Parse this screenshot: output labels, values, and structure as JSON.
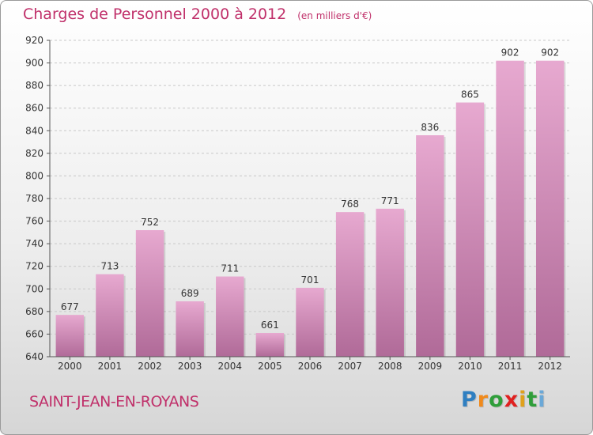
{
  "title": "Charges de Personnel 2000 à 2012",
  "subtitle": "(en milliers d'€)",
  "commune": "SAINT-JEAN-EN-ROYANS",
  "logo": {
    "letters": [
      "P",
      "r",
      "o",
      "x",
      "i",
      "t",
      "i"
    ],
    "colors": [
      "#2f7fc1",
      "#f08a1c",
      "#2f9e3a",
      "#e0201f",
      "#e0a11b",
      "#2f9e3a",
      "#6aa8d8"
    ]
  },
  "colors": {
    "title": "#c0306a",
    "bar_top": "#e7a9d0",
    "bar_bottom": "#b06a98"
  },
  "chart_data": {
    "type": "bar",
    "categories": [
      "2000",
      "2001",
      "2002",
      "2003",
      "2004",
      "2005",
      "2006",
      "2007",
      "2008",
      "2009",
      "2010",
      "2011",
      "2012"
    ],
    "values": [
      677,
      713,
      752,
      689,
      711,
      661,
      701,
      768,
      771,
      836,
      865,
      902,
      902
    ],
    "ylim": [
      640,
      920
    ],
    "yticks": [
      640,
      660,
      680,
      700,
      720,
      740,
      760,
      780,
      800,
      820,
      840,
      860,
      880,
      900,
      920
    ],
    "grid": true,
    "title": "Charges de Personnel 2000 à 2012",
    "xlabel": "",
    "ylabel": ""
  }
}
